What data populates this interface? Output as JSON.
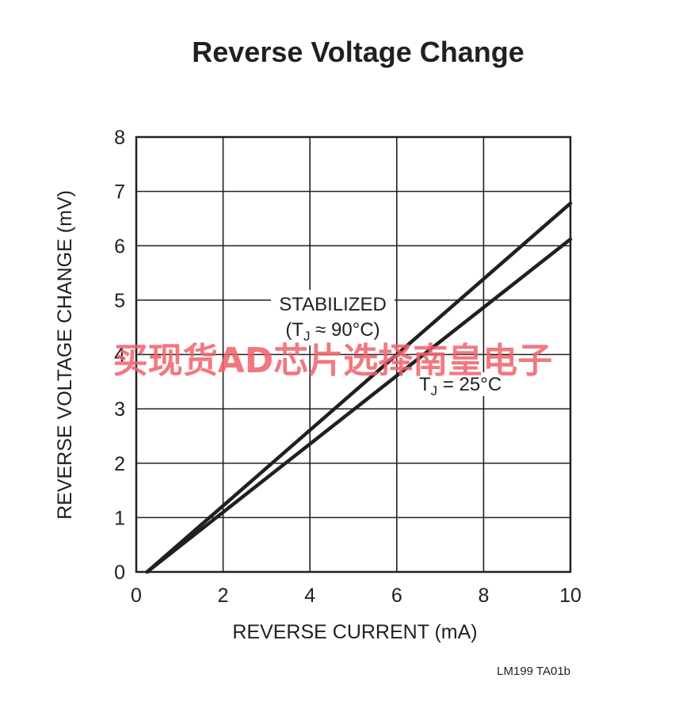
{
  "chart_data": {
    "type": "line",
    "title": "Reverse Voltage Change",
    "xlabel": "REVERSE CURRENT (mA)",
    "ylabel": "REVERSE VOLTAGE CHANGE (mV)",
    "xlim": [
      0,
      10
    ],
    "ylim": [
      0,
      8
    ],
    "xticks": [
      "0",
      "2",
      "4",
      "6",
      "8",
      "10"
    ],
    "yticks": [
      "0",
      "1",
      "2",
      "3",
      "4",
      "5",
      "6",
      "7",
      "8"
    ],
    "grid": true,
    "series": [
      {
        "x": [
          0.25,
          10
        ],
        "y": [
          0,
          6.78
        ]
      },
      {
        "x": [
          0.25,
          10
        ],
        "y": [
          0,
          6.12
        ]
      }
    ],
    "annotations": {
      "stabilized_line1": "STABILIZED",
      "stabilized_line2_prefix": "(T",
      "stabilized_sub": "J",
      "stabilized_line2_suffix": " ≈ 90°C)",
      "room_prefix": "T",
      "room_sub": "J",
      "room_suffix": " = 25°C"
    },
    "line_color": "#231f20"
  },
  "figure_code": "LM199 TA01b",
  "watermark": "买现货AD芯片选择南皇电子",
  "watermark_color": "#f0606a"
}
